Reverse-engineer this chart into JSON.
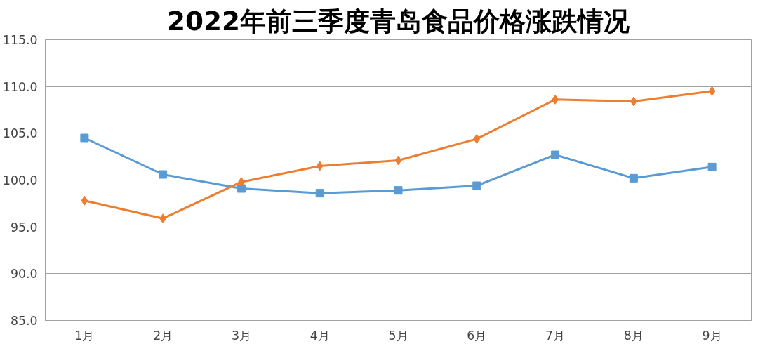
{
  "chart_data": {
    "type": "line",
    "title": "2022年前三季度青岛食品价格涨跌情况",
    "categories": [
      "1月",
      "2月",
      "3月",
      "4月",
      "5月",
      "6月",
      "7月",
      "8月",
      "9月"
    ],
    "series": [
      {
        "color": "#5b9bd5",
        "marker": "square",
        "values": [
          104.5,
          100.6,
          99.1,
          98.6,
          98.9,
          99.4,
          102.7,
          100.2,
          101.4
        ]
      },
      {
        "color": "#ed7d31",
        "marker": "diamond",
        "values": [
          97.8,
          95.9,
          99.8,
          101.5,
          102.1,
          104.4,
          108.6,
          108.4,
          109.5
        ]
      }
    ],
    "ylim": [
      85,
      115
    ],
    "yticks": [
      {
        "value": 85,
        "label": "85.0"
      },
      {
        "value": 90,
        "label": "90.0"
      },
      {
        "value": 95,
        "label": "95.0"
      },
      {
        "value": 100,
        "label": "100.0"
      },
      {
        "value": 105,
        "label": "105.0"
      },
      {
        "value": 110,
        "label": "110.0"
      },
      {
        "value": 115,
        "label": "115.0"
      }
    ],
    "grid": "y"
  }
}
